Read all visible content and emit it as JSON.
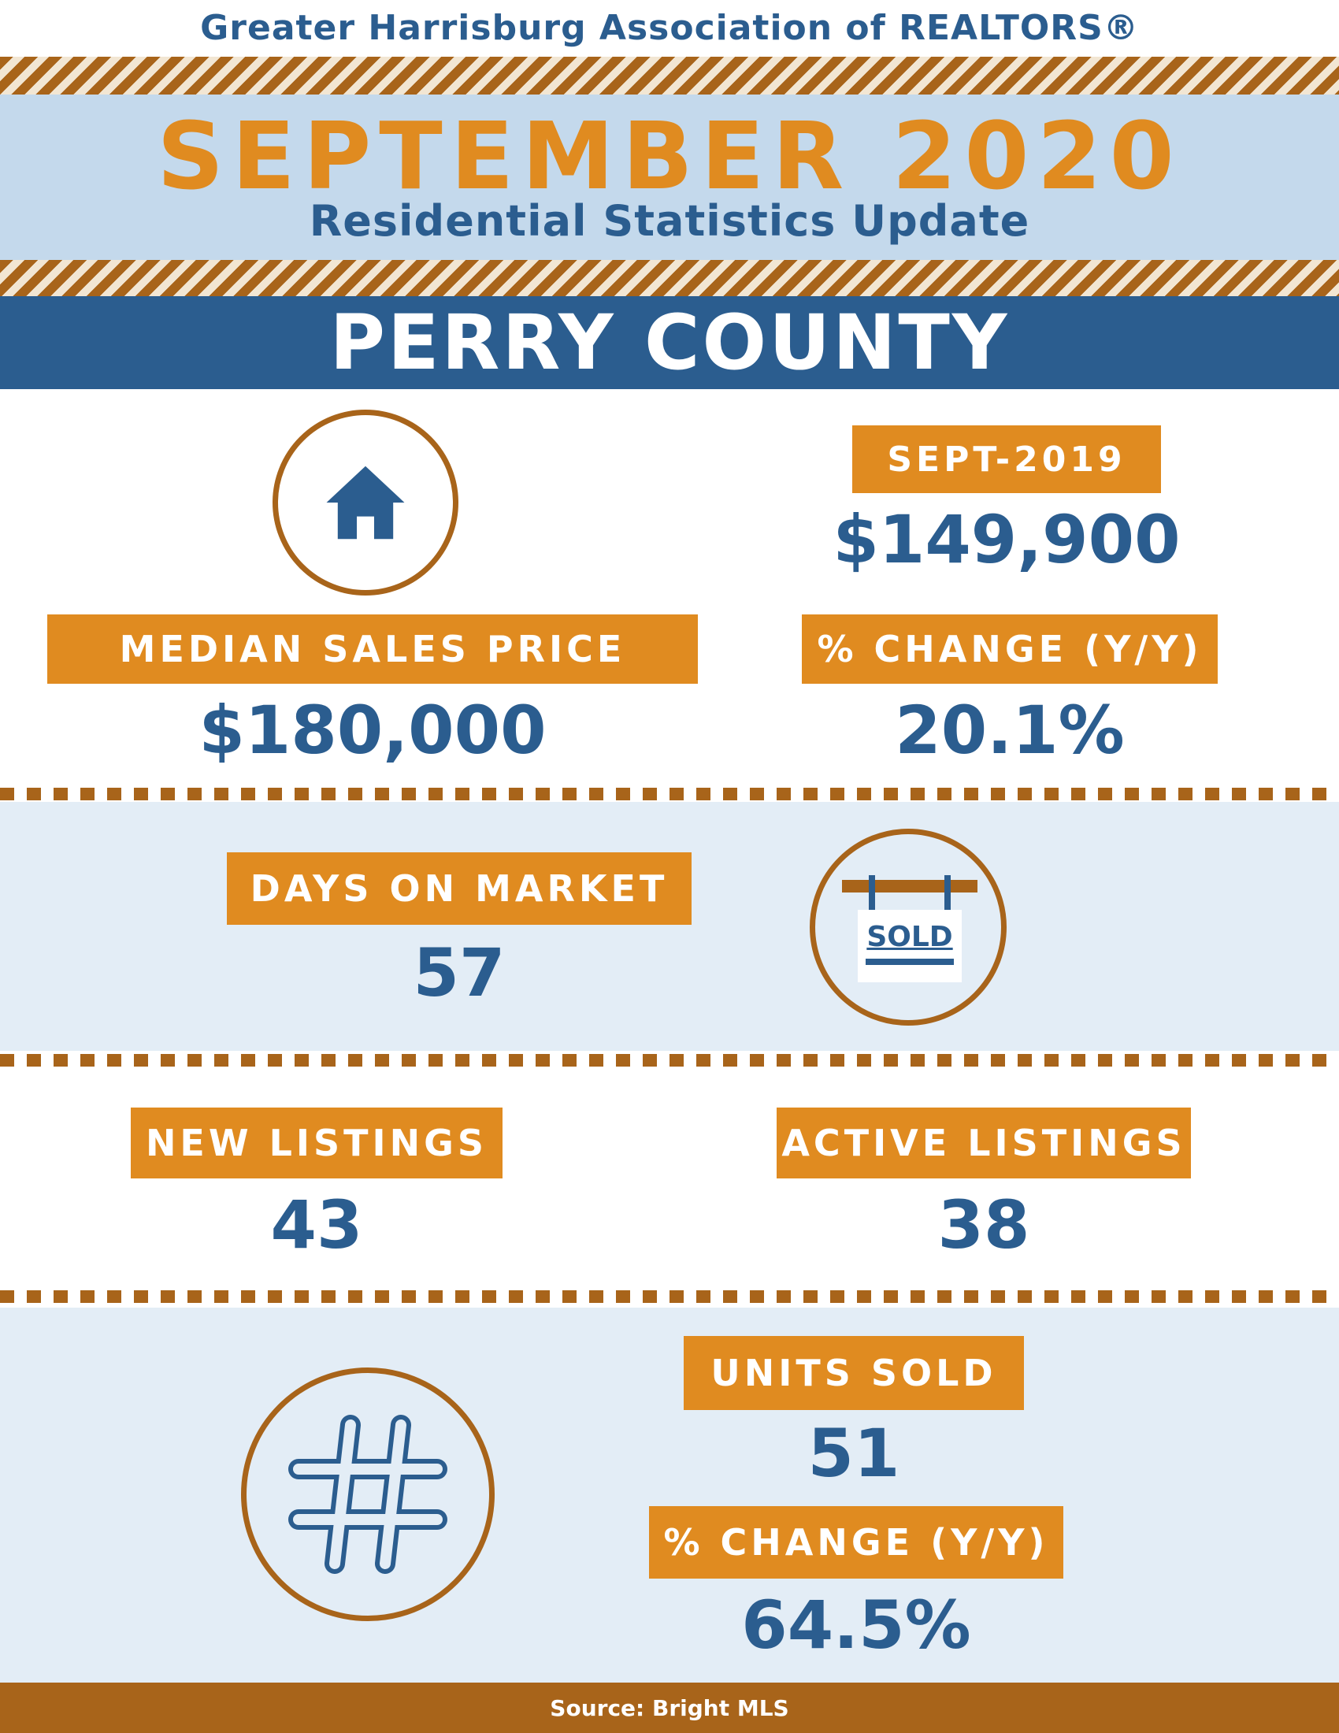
{
  "header": {
    "organization": "Greater Harrisburg Association of REALTORS®",
    "title": "SEPTEMBER 2020",
    "subtitle": "Residential Statistics Update",
    "county": "PERRY COUNTY"
  },
  "median_sales": {
    "label": "MEDIAN SALES PRICE",
    "value": "$180,000",
    "prior_label": "SEPT-2019",
    "prior_value": "$149,900",
    "change_label": "% CHANGE (Y/Y)",
    "change_value": "20.1%"
  },
  "days_on_market": {
    "label": "DAYS ON MARKET",
    "value": "57",
    "sign_text": "SOLD"
  },
  "new_listings": {
    "label": "NEW LISTINGS",
    "value": "43"
  },
  "active_listings": {
    "label": "ACTIVE LISTINGS",
    "value": "38"
  },
  "units_sold": {
    "label": "UNITS SOLD",
    "value": "51",
    "change_label": "% CHANGE (Y/Y)",
    "change_value": "64.5%"
  },
  "footer": {
    "source": "Source: Bright MLS"
  },
  "icons": [
    "house-icon",
    "sold-sign-icon",
    "hashtag-icon"
  ],
  "colors": {
    "orange": "#e08b20",
    "brown": "#a8641a",
    "navy": "#2b5d8f",
    "light_blue": "#c4d9ec",
    "pale_blue": "#e3edf6"
  }
}
